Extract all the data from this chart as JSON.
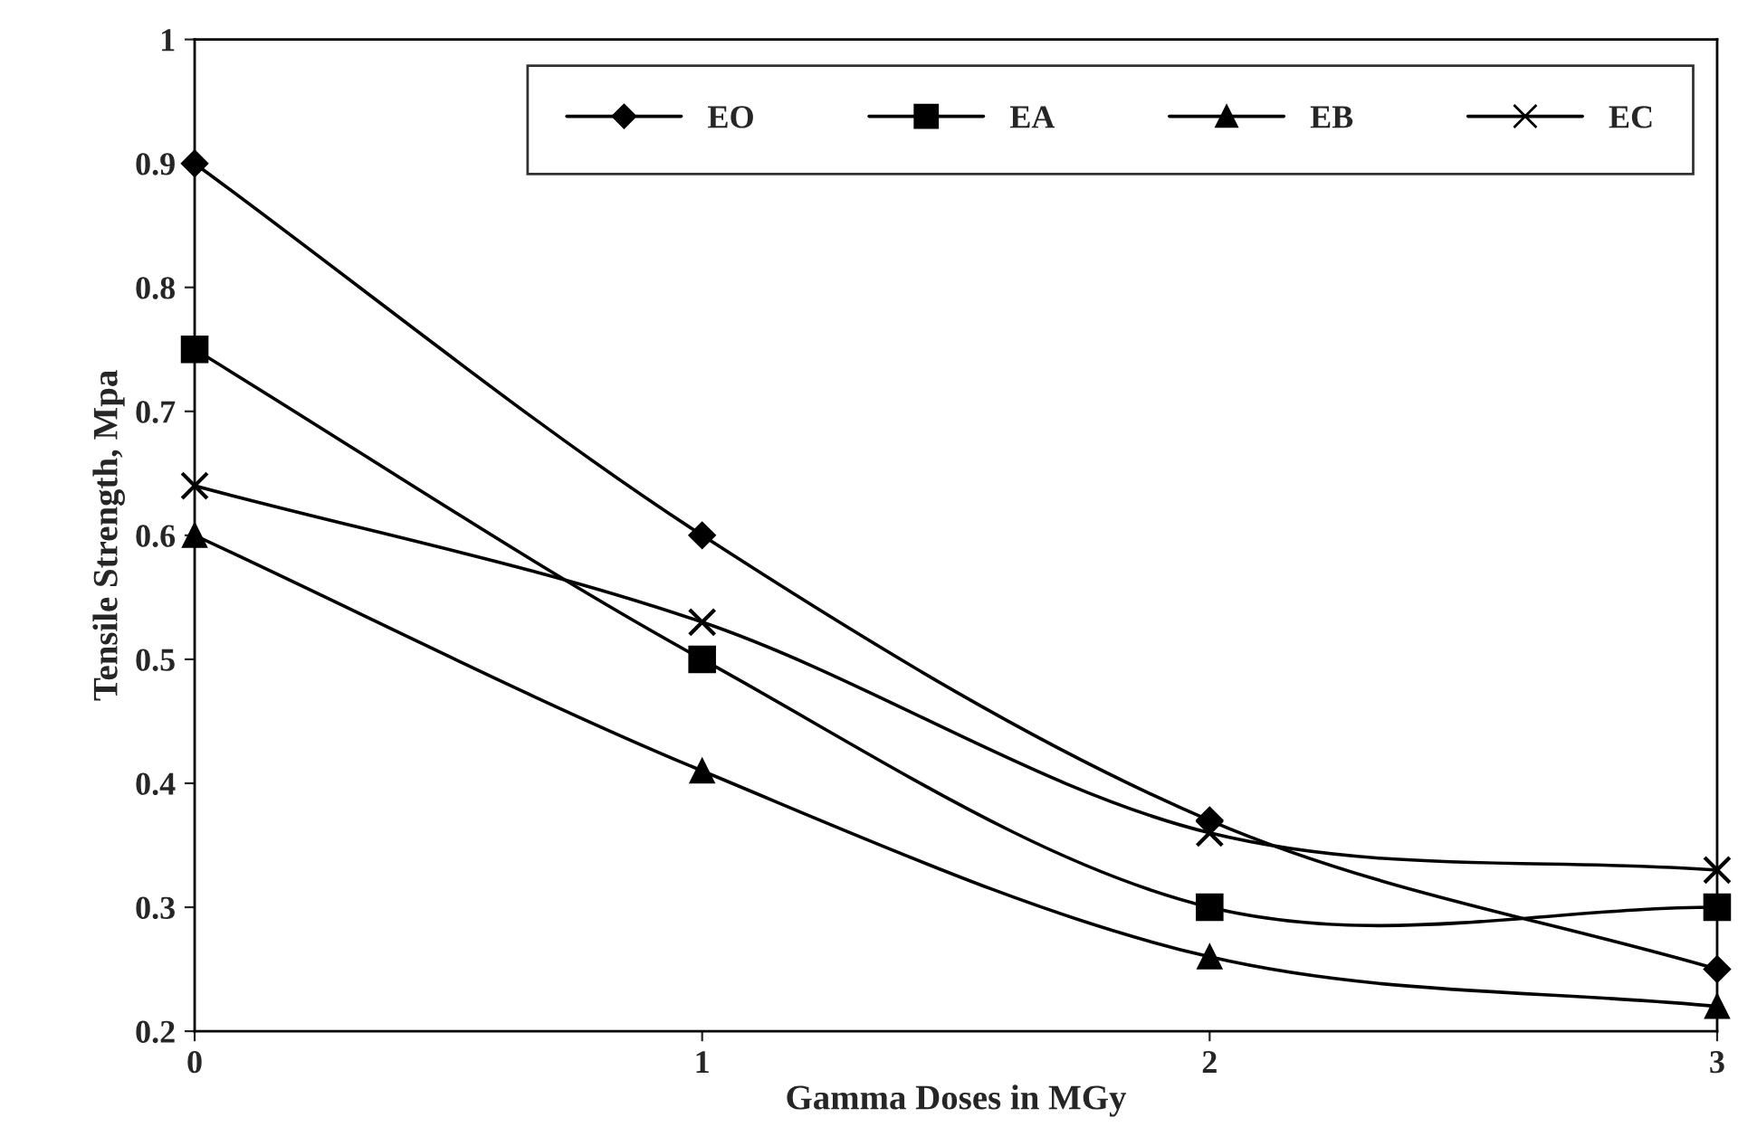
{
  "chart_data": {
    "type": "line",
    "xlabel": "Gamma Doses in MGy",
    "ylabel": "Tensile Strength, Mpa",
    "x": [
      0,
      1,
      2,
      3
    ],
    "series": [
      {
        "name": "EO",
        "color": "#000000",
        "marker": "diamond",
        "values": [
          0.9,
          0.6,
          0.37,
          0.25
        ]
      },
      {
        "name": "EA",
        "color": "#000000",
        "marker": "square",
        "values": [
          0.75,
          0.5,
          0.3,
          0.3
        ]
      },
      {
        "name": "EB",
        "color": "#000000",
        "marker": "triangle",
        "values": [
          0.6,
          0.41,
          0.26,
          0.22
        ]
      },
      {
        "name": "EC",
        "color": "#000000",
        "marker": "cross",
        "values": [
          0.64,
          0.53,
          0.36,
          0.33
        ]
      }
    ],
    "xlim": [
      0,
      3
    ],
    "ylim": [
      0.2,
      1
    ],
    "xticks": [
      0,
      1,
      2,
      3
    ],
    "yticks": [
      0.2,
      0.3,
      0.4,
      0.5,
      0.6,
      0.7,
      0.8,
      0.9,
      1
    ],
    "grid": false,
    "legend": "top right",
    "line_style": "solid"
  }
}
